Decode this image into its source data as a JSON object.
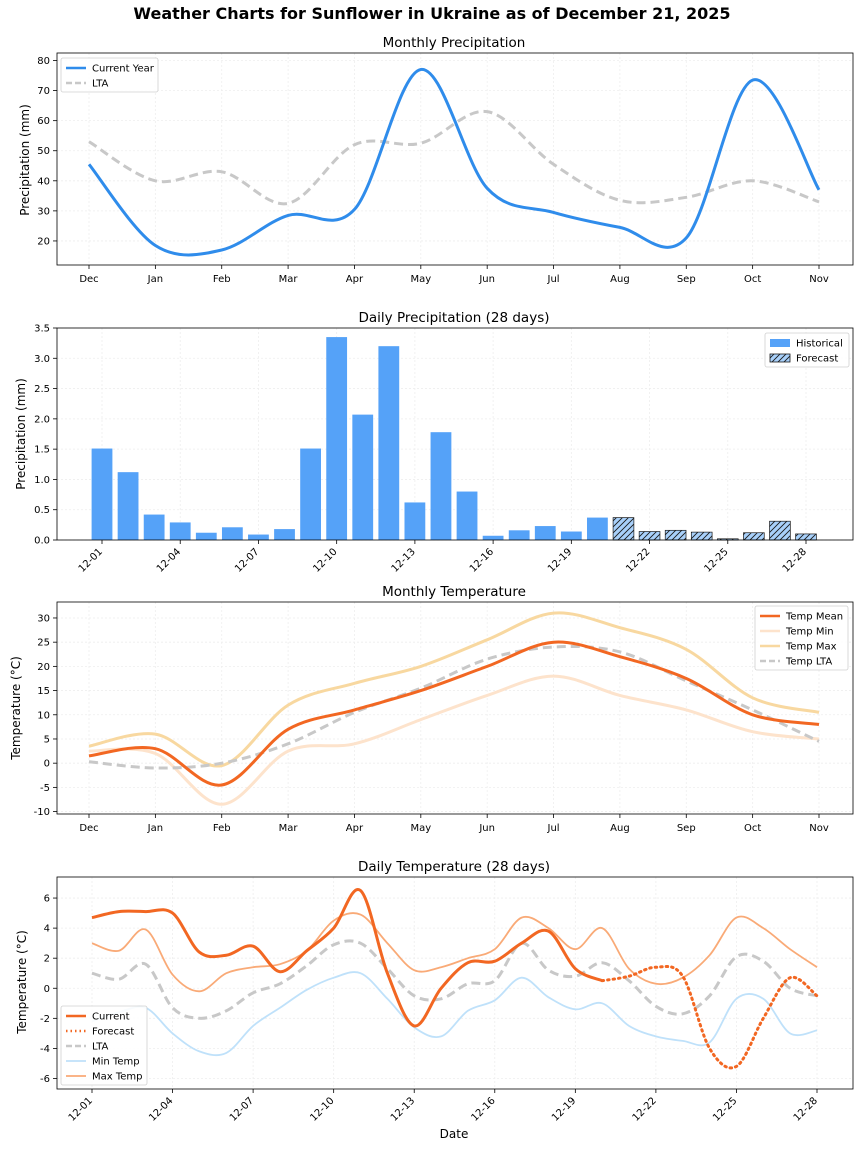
{
  "figure": {
    "title": "Weather Charts for Sunflower in Ukraine as of December 21, 2025",
    "date_label": "Date"
  },
  "colors": {
    "current": "#2f8ceb",
    "lta": "#c8c8c8",
    "bar": "#55a2f8",
    "temp_mean": "#f26722",
    "temp_min": "#fde3cc",
    "temp_max": "#f8d8a0",
    "daily_min": "#bfe1fa",
    "daily_max": "#f9aa77",
    "grid": "#eeeeee"
  },
  "chart_data": [
    {
      "id": "monthly_precip",
      "type": "line",
      "title": "Monthly Precipitation",
      "xlabel": "",
      "ylabel": "Precipitation (mm)",
      "categories": [
        "Dec",
        "Jan",
        "Feb",
        "Mar",
        "Apr",
        "May",
        "Jun",
        "Jul",
        "Aug",
        "Sep",
        "Oct",
        "Nov"
      ],
      "yticks": [
        20,
        30,
        40,
        50,
        60,
        70,
        80
      ],
      "ylim": [
        12,
        82.5
      ],
      "grid": true,
      "legend": "upper-left",
      "series": [
        {
          "name": "Current Year",
          "style": "solid",
          "values": [
            45.5,
            18.5,
            17.0,
            28.5,
            30.5,
            77.0,
            37.5,
            29.5,
            24.5,
            21.0,
            73.5,
            37.0
          ]
        },
        {
          "name": "LTA",
          "style": "dashed",
          "values": [
            53.0,
            40.0,
            43.0,
            32.5,
            52.0,
            52.5,
            63.0,
            45.5,
            33.5,
            34.5,
            40.0,
            33.0
          ]
        }
      ]
    },
    {
      "id": "daily_precip",
      "type": "bar",
      "title": "Daily Precipitation (28 days)",
      "xlabel": "",
      "ylabel": "Precipitation (mm)",
      "categories": [
        "12-01",
        "12-02",
        "12-03",
        "12-04",
        "12-05",
        "12-06",
        "12-07",
        "12-08",
        "12-09",
        "12-10",
        "12-11",
        "12-12",
        "12-13",
        "12-14",
        "12-15",
        "12-16",
        "12-17",
        "12-18",
        "12-19",
        "12-20",
        "12-21",
        "12-22",
        "12-23",
        "12-24",
        "12-25",
        "12-26",
        "12-27",
        "12-28"
      ],
      "tick_labels": [
        "12-01",
        "12-04",
        "12-07",
        "12-10",
        "12-13",
        "12-16",
        "12-19",
        "12-22",
        "12-25",
        "12-28"
      ],
      "yticks": [
        0.0,
        0.5,
        1.0,
        1.5,
        2.0,
        2.5,
        3.0,
        3.5
      ],
      "ylim": [
        0,
        3.5
      ],
      "grid": true,
      "legend": "upper-right",
      "series": [
        {
          "name": "Historical",
          "values": [
            1.51,
            1.12,
            0.42,
            0.29,
            0.12,
            0.21,
            0.09,
            0.18,
            1.51,
            3.35,
            2.07,
            3.2,
            0.62,
            1.78,
            0.8,
            0.07,
            0.16,
            0.23,
            0.14,
            0.37,
            null,
            null,
            null,
            null,
            null,
            null,
            null,
            null
          ]
        },
        {
          "name": "Forecast",
          "values": [
            null,
            null,
            null,
            null,
            null,
            null,
            null,
            null,
            null,
            null,
            null,
            null,
            null,
            null,
            null,
            null,
            null,
            null,
            null,
            null,
            0.37,
            0.14,
            0.16,
            0.13,
            0.02,
            0.12,
            0.31,
            0.1
          ]
        }
      ]
    },
    {
      "id": "monthly_temp",
      "type": "line",
      "title": "Monthly Temperature",
      "xlabel": "",
      "ylabel": "Temperature (°C)",
      "categories": [
        "Dec",
        "Jan",
        "Feb",
        "Mar",
        "Apr",
        "May",
        "Jun",
        "Jul",
        "Aug",
        "Sep",
        "Oct",
        "Nov"
      ],
      "yticks": [
        -10,
        -5,
        0,
        5,
        10,
        15,
        20,
        25,
        30
      ],
      "ylim": [
        -10.5,
        33.3
      ],
      "grid": true,
      "legend": "upper-right",
      "series": [
        {
          "name": "Temp Mean",
          "style": "solid",
          "values": [
            1.5,
            3.0,
            -4.5,
            7.0,
            11.0,
            15.0,
            20.0,
            25.0,
            22.0,
            17.5,
            10.0,
            8.0
          ]
        },
        {
          "name": "Temp Min",
          "style": "solid",
          "values": [
            2.5,
            2.0,
            -8.5,
            2.5,
            4.0,
            9.0,
            14.0,
            18.0,
            14.0,
            11.0,
            6.5,
            5.0
          ]
        },
        {
          "name": "Temp Max",
          "style": "solid",
          "values": [
            3.5,
            6.0,
            -0.5,
            12.0,
            16.5,
            20.0,
            25.5,
            31.0,
            28.0,
            23.5,
            13.5,
            10.5
          ]
        },
        {
          "name": "Temp LTA",
          "style": "dashed",
          "values": [
            0.3,
            -1.0,
            0.0,
            4.0,
            10.5,
            15.5,
            21.5,
            24.0,
            23.0,
            17.0,
            11.0,
            4.5
          ]
        }
      ]
    },
    {
      "id": "daily_temp",
      "type": "line",
      "title": "Daily Temperature (28 days)",
      "xlabel": "Date",
      "ylabel": "Temperature (°C)",
      "categories": [
        "12-01",
        "12-02",
        "12-03",
        "12-04",
        "12-05",
        "12-06",
        "12-07",
        "12-08",
        "12-09",
        "12-10",
        "12-11",
        "12-12",
        "12-13",
        "12-14",
        "12-15",
        "12-16",
        "12-17",
        "12-18",
        "12-19",
        "12-20",
        "12-21",
        "12-22",
        "12-23",
        "12-24",
        "12-25",
        "12-26",
        "12-27",
        "12-28"
      ],
      "tick_labels": [
        "12-01",
        "12-04",
        "12-07",
        "12-10",
        "12-13",
        "12-16",
        "12-19",
        "12-22",
        "12-25",
        "12-28"
      ],
      "yticks": [
        -6,
        -4,
        -2,
        0,
        2,
        4,
        6
      ],
      "ylim": [
        -6.7,
        7.4
      ],
      "grid": true,
      "legend": "lower-left",
      "series": [
        {
          "name": "Current",
          "style": "solid",
          "values": [
            4.7,
            5.1,
            5.1,
            5.0,
            2.4,
            2.2,
            2.8,
            1.1,
            2.5,
            4.0,
            6.5,
            1.0,
            -2.5,
            0.0,
            1.7,
            1.8,
            3.0,
            3.8,
            1.3,
            0.5,
            null,
            null,
            null,
            null,
            null,
            null,
            null,
            null
          ]
        },
        {
          "name": "Forecast",
          "style": "dotted",
          "values": [
            null,
            null,
            null,
            null,
            null,
            null,
            null,
            null,
            null,
            null,
            null,
            null,
            null,
            null,
            null,
            null,
            null,
            null,
            null,
            0.5,
            0.8,
            1.4,
            0.8,
            -4.0,
            -5.2,
            -2.0,
            0.7,
            -0.5
          ]
        },
        {
          "name": "LTA",
          "style": "dashed",
          "values": [
            1.0,
            0.6,
            1.6,
            -1.3,
            -2.0,
            -1.5,
            -0.3,
            0.3,
            1.5,
            2.9,
            3.0,
            1.3,
            -0.5,
            -0.7,
            0.3,
            0.5,
            3.0,
            1.2,
            0.8,
            1.7,
            0.5,
            -1.2,
            -1.7,
            -0.5,
            2.1,
            1.8,
            0.0,
            -0.5
          ]
        },
        {
          "name": "Min Temp",
          "style": "solid",
          "values": [
            -2.2,
            -1.6,
            -1.3,
            -3.0,
            -4.2,
            -4.3,
            -2.5,
            -1.3,
            -0.1,
            0.7,
            1.0,
            -0.7,
            -2.6,
            -3.2,
            -1.5,
            -0.8,
            0.7,
            -0.6,
            -1.4,
            -1.0,
            -2.5,
            -3.2,
            -3.5,
            -3.6,
            -0.7,
            -0.7,
            -3.0,
            -2.8
          ]
        },
        {
          "name": "Max Temp",
          "style": "solid",
          "values": [
            3.0,
            2.5,
            3.9,
            0.9,
            -0.2,
            1.0,
            1.4,
            1.6,
            2.5,
            4.5,
            4.9,
            3.0,
            1.2,
            1.4,
            2.0,
            2.6,
            4.7,
            4.0,
            2.6,
            4.0,
            1.3,
            0.3,
            0.7,
            2.2,
            4.7,
            4.0,
            2.6,
            1.4
          ]
        }
      ]
    }
  ]
}
